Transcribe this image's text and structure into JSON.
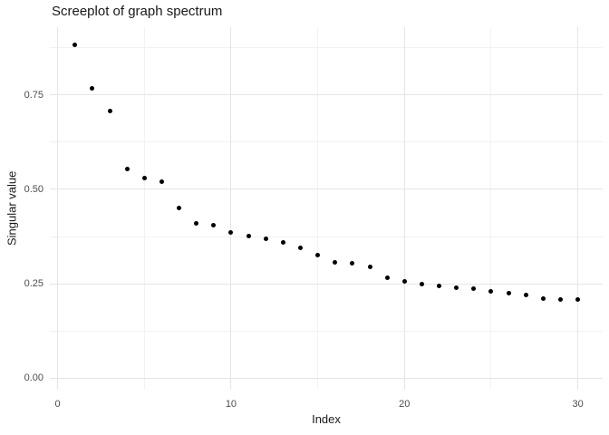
{
  "chart_data": {
    "type": "scatter",
    "title": "Screeplot of graph spectrum",
    "xlabel": "Index",
    "ylabel": "Singular value",
    "x": [
      1,
      2,
      3,
      4,
      5,
      6,
      7,
      8,
      9,
      10,
      11,
      12,
      13,
      14,
      15,
      16,
      17,
      18,
      19,
      20,
      21,
      22,
      23,
      24,
      25,
      26,
      27,
      28,
      29,
      30
    ],
    "y": [
      0.883,
      0.768,
      0.708,
      0.553,
      0.531,
      0.52,
      0.45,
      0.411,
      0.404,
      0.386,
      0.377,
      0.37,
      0.359,
      0.345,
      0.325,
      0.306,
      0.305,
      0.294,
      0.265,
      0.257,
      0.249,
      0.245,
      0.239,
      0.236,
      0.229,
      0.225,
      0.219,
      0.211,
      0.208,
      0.207
    ],
    "xlim": [
      -0.45,
      31.43
    ],
    "ylim": [
      -0.031,
      0.93
    ],
    "x_ticks": {
      "values": [
        0,
        10,
        20,
        30
      ],
      "labels": [
        "0",
        "10",
        "20",
        "30"
      ]
    },
    "x_minor": [
      5,
      15,
      25
    ],
    "y_ticks": {
      "values": [
        0,
        0.25,
        0.5,
        0.75
      ],
      "labels": [
        "0.00",
        "0.25",
        "0.50",
        "0.75"
      ]
    },
    "y_minor": [
      0.125,
      0.375,
      0.625,
      0.875
    ],
    "grid": true,
    "legend": "none",
    "colors": {
      "point": "#000000",
      "major_grid": "#e5e5e5",
      "minor_grid": "#f2f2f2",
      "tick_label": "#4d4d4d",
      "text": "#1a1a1a",
      "background": "#ffffff"
    }
  }
}
